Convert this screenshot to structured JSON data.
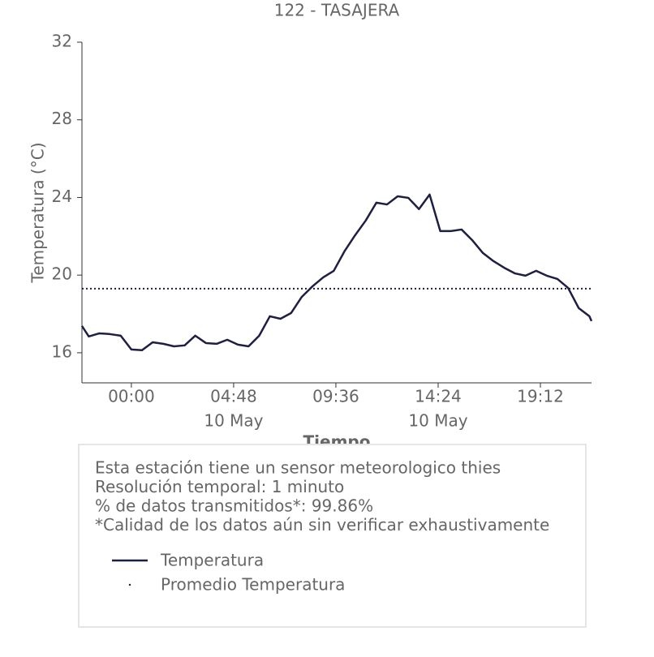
{
  "chart_data": {
    "type": "line",
    "title": "122 - TASAJERA",
    "xlabel": "Tiempo",
    "ylabel": "Temperatura (°C)",
    "x": [
      -2.32,
      -2,
      -1.5,
      -1,
      -0.5,
      0,
      0.5,
      1,
      1.5,
      2,
      2.5,
      3,
      3.5,
      4,
      4.5,
      5,
      5.5,
      6,
      6.5,
      7,
      7.5,
      8,
      8.5,
      9,
      9.5,
      10,
      10.5,
      11,
      11.5,
      12,
      12.5,
      13,
      13.5,
      14,
      14.5,
      15,
      15.5,
      16,
      16.5,
      17,
      17.5,
      18,
      18.5,
      19,
      19.5,
      20,
      20.5,
      21,
      21.5,
      21.6
    ],
    "series": [
      {
        "name": "Temperatura",
        "color": "#1f1f3f",
        "values": [
          17.38,
          16.84,
          17.0,
          16.96,
          16.88,
          16.17,
          16.13,
          16.54,
          16.46,
          16.33,
          16.38,
          16.88,
          16.5,
          16.46,
          16.67,
          16.42,
          16.33,
          16.88,
          17.88,
          17.75,
          18.05,
          18.88,
          19.42,
          19.88,
          20.22,
          21.22,
          22.05,
          22.81,
          23.73,
          23.64,
          24.06,
          23.98,
          23.4,
          24.15,
          22.27,
          22.27,
          22.35,
          21.8,
          21.14,
          20.72,
          20.38,
          20.09,
          19.97,
          20.22,
          19.97,
          19.8,
          19.34,
          18.3,
          17.88,
          17.63
        ]
      }
    ],
    "mean": {
      "name": "Promedio Temperatura",
      "value": 19.3,
      "color": "#1f1f3f"
    },
    "xlim": [
      -2.32,
      21.6
    ],
    "xticks": [
      {
        "value": 0,
        "label": "00:00"
      },
      {
        "value": 4.8,
        "label": "04:48",
        "date": "10 May"
      },
      {
        "value": 9.6,
        "label": "09:36"
      },
      {
        "value": 14.4,
        "label": "14:24",
        "date": "10 May"
      },
      {
        "value": 19.2,
        "label": "19:12"
      }
    ],
    "ylim": [
      14.45,
      32
    ],
    "yticks": [
      16,
      20,
      24,
      28,
      32
    ],
    "info": [
      "Esta estación tiene un sensor meteorologico thies",
      "Resolución temporal: 1 minuto",
      "% de datos transmitidos*: 99.86%",
      "*Calidad de los datos aún sin verificar exhaustivamente"
    ]
  }
}
